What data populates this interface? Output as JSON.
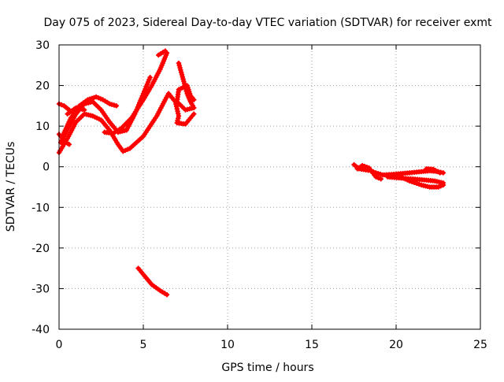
{
  "chart_data": {
    "type": "scatter",
    "title": "Day 075 of 2023, Sidereal Day-to-day VTEC variation (SDTVAR) for receiver exmt",
    "xlabel": "GPS time / hours",
    "ylabel": "SDTVAR / TECUs",
    "xlim": [
      0,
      25
    ],
    "ylim": [
      -40,
      30
    ],
    "x_ticks": [
      0,
      5,
      10,
      15,
      20,
      25
    ],
    "y_ticks": [
      30,
      20,
      10,
      0,
      -10,
      -20,
      -30,
      -40
    ],
    "grid": true,
    "legend": "none",
    "color": "#ff0000",
    "series": [
      {
        "name": "arc-1",
        "points": [
          [
            0.0,
            3.5
          ],
          [
            0.5,
            7
          ],
          [
            1.0,
            11
          ],
          [
            1.5,
            13
          ],
          [
            2.0,
            12.5
          ],
          [
            2.5,
            11.5
          ],
          [
            3.0,
            9
          ],
          [
            3.5,
            5.5
          ],
          [
            3.8,
            3.8
          ],
          [
            4.2,
            4.5
          ],
          [
            5.0,
            7.5
          ],
          [
            5.8,
            12.5
          ],
          [
            6.3,
            16.5
          ],
          [
            6.5,
            18
          ]
        ]
      },
      {
        "name": "arc-2",
        "points": [
          [
            0.1,
            6
          ],
          [
            0.6,
            10
          ],
          [
            1.0,
            13
          ],
          [
            1.5,
            15.5
          ],
          [
            2.0,
            16
          ],
          [
            2.5,
            14
          ],
          [
            3.0,
            11
          ],
          [
            3.5,
            8.5
          ],
          [
            4.0,
            9
          ],
          [
            4.5,
            13
          ],
          [
            5.0,
            18
          ],
          [
            5.4,
            22
          ]
        ]
      },
      {
        "name": "arc-3",
        "points": [
          [
            0.2,
            7.5
          ],
          [
            0.7,
            12
          ],
          [
            1.2,
            15
          ],
          [
            1.7,
            16.5
          ],
          [
            2.2,
            17.2
          ],
          [
            2.6,
            16.5
          ],
          [
            3.0,
            15.5
          ],
          [
            3.4,
            15
          ]
        ]
      },
      {
        "name": "arc-4",
        "points": [
          [
            0.0,
            15.5
          ],
          [
            0.3,
            15
          ],
          [
            0.6,
            14
          ]
        ]
      },
      {
        "name": "arc-5",
        "points": [
          [
            0.0,
            8
          ],
          [
            0.4,
            6
          ],
          [
            0.6,
            5.5
          ]
        ]
      },
      {
        "name": "arc-6",
        "points": [
          [
            0.5,
            13
          ],
          [
            1.0,
            14.5
          ],
          [
            1.5,
            14
          ]
        ]
      },
      {
        "name": "arc-7",
        "points": [
          [
            2.7,
            8.5
          ],
          [
            3.2,
            8.2
          ],
          [
            3.7,
            9.5
          ],
          [
            4.3,
            12
          ],
          [
            5.0,
            16.5
          ],
          [
            5.5,
            20
          ],
          [
            6.0,
            24
          ],
          [
            6.2,
            26
          ],
          [
            6.4,
            28
          ]
        ]
      },
      {
        "name": "arc-8",
        "points": [
          [
            5.9,
            27.5
          ],
          [
            6.3,
            28.5
          ]
        ]
      },
      {
        "name": "arc-9",
        "points": [
          [
            4.7,
            -25
          ],
          [
            5.0,
            -26.5
          ],
          [
            5.5,
            -29
          ],
          [
            6.0,
            -30.5
          ],
          [
            6.4,
            -31.5
          ]
        ]
      },
      {
        "name": "arc-10",
        "points": [
          [
            7.1,
            25.5
          ],
          [
            7.4,
            21
          ],
          [
            7.6,
            18
          ],
          [
            7.8,
            16
          ],
          [
            8.0,
            14.5
          ],
          [
            7.5,
            14
          ],
          [
            7.0,
            16
          ],
          [
            7.1,
            19
          ],
          [
            7.6,
            20
          ],
          [
            7.8,
            17.5
          ],
          [
            8.0,
            16.5
          ]
        ]
      },
      {
        "name": "arc-11",
        "points": [
          [
            6.5,
            18
          ],
          [
            6.9,
            16
          ],
          [
            7.1,
            12.5
          ],
          [
            7.0,
            10.8
          ],
          [
            7.5,
            10.5
          ],
          [
            7.8,
            12
          ],
          [
            8.0,
            13
          ]
        ]
      },
      {
        "name": "arc-12",
        "points": [
          [
            17.5,
            0.5
          ],
          [
            17.8,
            -0.5
          ],
          [
            18.2,
            -0.8
          ],
          [
            18.5,
            -1
          ],
          [
            18.8,
            -1.5
          ],
          [
            19.2,
            -2
          ]
        ]
      },
      {
        "name": "arc-13",
        "points": [
          [
            17.7,
            -0.5
          ],
          [
            18.0,
            0.3
          ],
          [
            18.4,
            -0.3
          ],
          [
            18.8,
            -2.5
          ],
          [
            19.1,
            -3
          ]
        ]
      },
      {
        "name": "arc-14",
        "points": [
          [
            19.3,
            -2
          ],
          [
            20.0,
            -1.8
          ],
          [
            20.8,
            -1.5
          ],
          [
            21.5,
            -1.2
          ],
          [
            22.0,
            -1
          ],
          [
            22.5,
            -1.2
          ],
          [
            22.8,
            -1.5
          ]
        ]
      },
      {
        "name": "arc-15",
        "points": [
          [
            19.5,
            -2.5
          ],
          [
            20.3,
            -2.8
          ],
          [
            21.0,
            -3
          ],
          [
            21.8,
            -3.3
          ],
          [
            22.3,
            -3.5
          ],
          [
            22.8,
            -4
          ]
        ]
      },
      {
        "name": "arc-16",
        "points": [
          [
            20.0,
            -2
          ],
          [
            20.8,
            -3.5
          ],
          [
            21.5,
            -4.5
          ],
          [
            22.0,
            -5
          ],
          [
            22.5,
            -5
          ],
          [
            22.8,
            -4.5
          ]
        ]
      },
      {
        "name": "arc-17",
        "points": [
          [
            21.8,
            -0.5
          ],
          [
            22.2,
            -0.6
          ],
          [
            22.6,
            -1.5
          ]
        ]
      }
    ]
  }
}
